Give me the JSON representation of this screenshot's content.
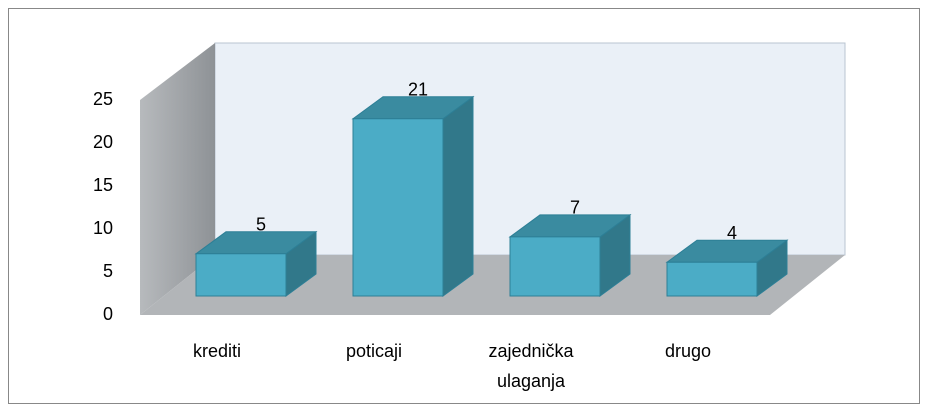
{
  "chart_data": {
    "type": "bar3d",
    "categories": [
      "krediti",
      "poticaji",
      "zajednička ulaganja",
      "drugo"
    ],
    "values": [
      5,
      21,
      7,
      4
    ],
    "color": "#4bacc6",
    "ylim": [
      0,
      25
    ],
    "yticks": [
      0,
      5,
      10,
      15,
      20,
      25
    ]
  }
}
